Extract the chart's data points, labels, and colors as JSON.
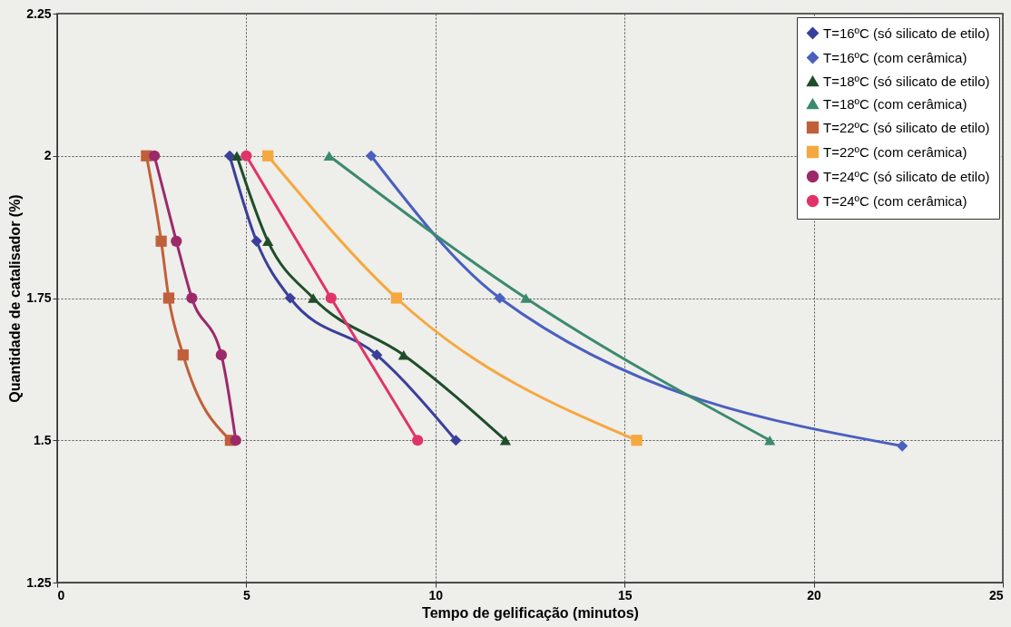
{
  "chart_data": {
    "type": "line",
    "xlabel": "Tempo de gelificação (minutos)",
    "ylabel": "Quantidade de catalisador (%)",
    "xlim": [
      0,
      25
    ],
    "xticks": [
      0,
      5,
      10,
      15,
      20,
      25
    ],
    "ylim": [
      1.25,
      2.25
    ],
    "yticks": [
      1.25,
      1.5,
      1.75,
      2,
      2.25
    ],
    "grid": true,
    "legend": "top right",
    "line_style": "solid",
    "series": [
      {
        "name": "T=16ºC (só silicato de etilo)",
        "color": "#3a3f9a",
        "marker": "diamond",
        "x": [
          4.56,
          5.27,
          6.16,
          8.45,
          10.54
        ],
        "values": [
          2,
          1.85,
          1.75,
          1.65,
          1.5
        ]
      },
      {
        "name": "T=16ºC (com cerâmica)",
        "color": "#4a5fc0",
        "marker": "diamond",
        "x": [
          8.3,
          11.7,
          22.34
        ],
        "values": [
          2,
          1.75,
          1.49
        ]
      },
      {
        "name": "T=18ºC (só silicato de etilo)",
        "color": "#1f4d2a",
        "marker": "triangle",
        "x": [
          4.75,
          5.57,
          6.77,
          9.16,
          11.85
        ],
        "values": [
          2,
          1.85,
          1.75,
          1.65,
          1.5
        ]
      },
      {
        "name": "T=18ºC (com cerâmica)",
        "color": "#3a8a6e",
        "marker": "triangle",
        "x": [
          7.19,
          12.39,
          18.84
        ],
        "values": [
          2,
          1.75,
          1.5
        ]
      },
      {
        "name": "T=22ºC (só silicato de etilo)",
        "color": "#c0603a",
        "marker": "square",
        "x": [
          2.36,
          2.75,
          2.95,
          3.33,
          4.58
        ],
        "values": [
          2,
          1.85,
          1.75,
          1.65,
          1.5
        ]
      },
      {
        "name": "T=22ºC (com cerâmica)",
        "color": "#f5a840",
        "marker": "square",
        "x": [
          5.57,
          8.97,
          15.32
        ],
        "values": [
          2,
          1.75,
          1.5
        ]
      },
      {
        "name": "T=24ºC (só silicato de etilo)",
        "color": "#9c2a6a",
        "marker": "circle",
        "x": [
          2.57,
          3.15,
          3.56,
          4.34,
          4.72
        ],
        "values": [
          2,
          1.85,
          1.75,
          1.65,
          1.5
        ]
      },
      {
        "name": "T=24ºC (com cerâmica)",
        "color": "#e0336a",
        "marker": "circle",
        "x": [
          5.0,
          7.24,
          9.53
        ],
        "values": [
          2,
          1.75,
          1.5
        ]
      }
    ]
  }
}
